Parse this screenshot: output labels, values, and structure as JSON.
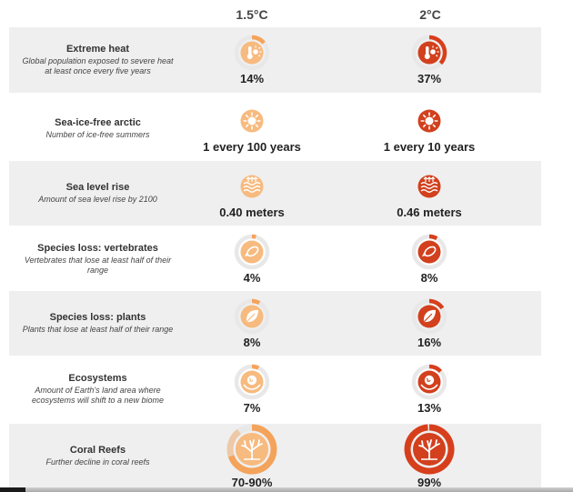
{
  "columns": [
    "1.5°C",
    "2°C"
  ],
  "colors": {
    "c15": "#f4a35b",
    "c15_fill": "#f7ba7f",
    "c20": "#d73f1c",
    "c20_fill": "#d2401d",
    "ring_track": "#e8e8e8",
    "band": "#efefef"
  },
  "rows": [
    {
      "title": "Extreme heat",
      "subtitle": "Global population exposed to severe heat at least once every five years",
      "icon": "thermometer-sun-icon",
      "v15": "14%",
      "v20": "37%",
      "f15": 0.14,
      "f20": 0.37,
      "shaded": true
    },
    {
      "title": "Sea-ice-free arctic",
      "subtitle": "Number of ice-free summers",
      "icon": "sun-icon",
      "v15": "1 every 100 years",
      "v20": "1 every 10 years",
      "f15": null,
      "f20": null,
      "shaded": false
    },
    {
      "title": "Sea level rise",
      "subtitle": "Amount of sea level rise by 2100",
      "icon": "sea-level-waves-icon",
      "v15": "0.40 meters",
      "v20": "0.46 meters",
      "f15": null,
      "f20": null,
      "shaded": true
    },
    {
      "title": "Species loss: vertebrates",
      "subtitle": "Vertebrates that lose at least half of their range",
      "icon": "fish-icon",
      "v15": "4%",
      "v20": "8%",
      "f15": 0.04,
      "f20": 0.08,
      "shaded": false
    },
    {
      "title": "Species loss: plants",
      "subtitle": "Plants that lose at least half of their range",
      "icon": "leaf-icon",
      "v15": "8%",
      "v20": "16%",
      "f15": 0.08,
      "f20": 0.16,
      "shaded": true
    },
    {
      "title": "Ecosystems",
      "subtitle": "Amount of Earth's land area where ecosystems will shift to a new biome",
      "icon": "globe-hand-icon",
      "v15": "7%",
      "v20": "13%",
      "f15": 0.07,
      "f20": 0.13,
      "shaded": false
    },
    {
      "title": "Coral Reefs",
      "subtitle": "Further decline in coral reefs",
      "icon": "coral-icon",
      "v15": "70-90%",
      "v20": "99%",
      "f15": 0.9,
      "f20": 0.99,
      "f15_low": 0.7,
      "shaded": true
    }
  ],
  "chart_data": {
    "type": "table",
    "series": [
      {
        "name": "1.5°C",
        "values": [
          "14%",
          "1 every 100 years",
          "0.40 meters",
          "4%",
          "8%",
          "7%",
          "70-90%"
        ]
      },
      {
        "name": "2°C",
        "values": [
          "37%",
          "1 every 10 years",
          "0.46 meters",
          "8%",
          "16%",
          "13%",
          "99%"
        ]
      }
    ],
    "categories": [
      "Extreme heat",
      "Sea-ice-free arctic",
      "Sea level rise",
      "Species loss: vertebrates",
      "Species loss: plants",
      "Ecosystems",
      "Coral Reefs"
    ]
  }
}
